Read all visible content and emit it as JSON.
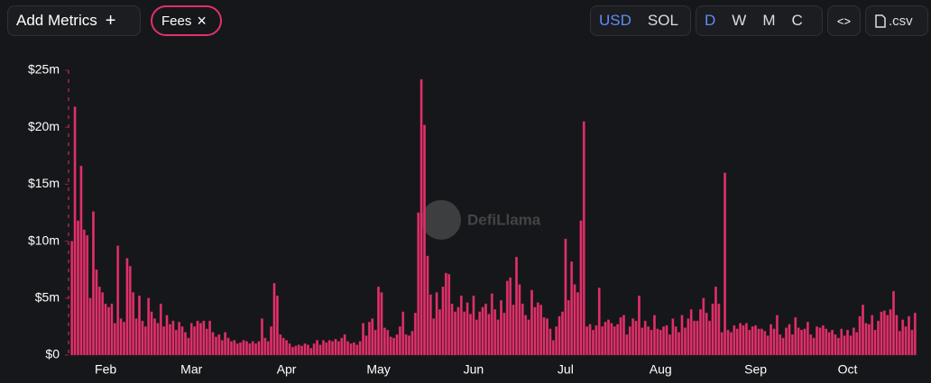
{
  "toolbar": {
    "add_metrics": "Add Metrics",
    "add_icon": "+",
    "metric": "Fees",
    "remove_icon": "×",
    "currencies": [
      "USD",
      "SOL"
    ],
    "periods": [
      "D",
      "W",
      "M",
      "C"
    ],
    "embed": "<>",
    "csv": ".csv"
  },
  "watermark": "DefiLlama",
  "chart_data": {
    "type": "bar",
    "color": "#e0316b",
    "ylim": [
      0,
      25
    ],
    "yticks": [
      {
        "value": 0,
        "label": "$0"
      },
      {
        "value": 5,
        "label": "$5m"
      },
      {
        "value": 10,
        "label": "$10m"
      },
      {
        "value": 15,
        "label": "$15m"
      },
      {
        "value": 20,
        "label": "$20m"
      },
      {
        "value": 25,
        "label": "$25m"
      }
    ],
    "categories": [
      null,
      null,
      null,
      null,
      null,
      null,
      null,
      null,
      null,
      null,
      null,
      "Feb",
      null,
      null,
      null,
      null,
      null,
      null,
      null,
      null,
      null,
      null,
      null,
      null,
      null,
      null,
      null,
      null,
      null,
      null,
      null,
      null,
      null,
      null,
      null,
      null,
      null,
      null,
      null,
      "Mar",
      null,
      null,
      null,
      null,
      null,
      null,
      null,
      null,
      null,
      null,
      null,
      null,
      null,
      null,
      null,
      null,
      null,
      null,
      null,
      null,
      null,
      null,
      null,
      null,
      null,
      null,
      null,
      null,
      null,
      null,
      "Apr",
      null,
      null,
      null,
      null,
      null,
      null,
      null,
      null,
      null,
      null,
      null,
      null,
      null,
      null,
      null,
      null,
      null,
      null,
      null,
      null,
      null,
      null,
      null,
      null,
      null,
      null,
      null,
      null,
      null,
      "May",
      null,
      null,
      null,
      null,
      null,
      null,
      null,
      null,
      null,
      null,
      null,
      null,
      null,
      null,
      null,
      null,
      null,
      null,
      null,
      null,
      null,
      null,
      null,
      null,
      null,
      null,
      null,
      null,
      null,
      null,
      "Jun",
      null,
      null,
      null,
      null,
      null,
      null,
      null,
      null,
      null,
      null,
      null,
      null,
      null,
      null,
      null,
      null,
      null,
      null,
      null,
      null,
      null,
      null,
      null,
      null,
      null,
      null,
      null,
      null,
      null,
      "Jul",
      null,
      null,
      null,
      null,
      null,
      null,
      null,
      null,
      null,
      null,
      null,
      null,
      null,
      null,
      null,
      null,
      null,
      null,
      null,
      null,
      null,
      null,
      null,
      null,
      null,
      null,
      null,
      null,
      null,
      null,
      "Aug",
      null,
      null,
      null,
      null,
      null,
      null,
      null,
      null,
      null,
      null,
      null,
      null,
      null,
      null,
      null,
      null,
      null,
      null,
      null,
      null,
      null,
      null,
      null,
      null,
      null,
      null,
      null,
      null,
      null,
      null,
      "Sep",
      null,
      null,
      null,
      null,
      null,
      null,
      null,
      null,
      null,
      null,
      null,
      null,
      null,
      null,
      null,
      null,
      null,
      null,
      null,
      null,
      null,
      null,
      null,
      null,
      null,
      null,
      null,
      null,
      null,
      "Oct",
      null,
      null,
      null,
      null,
      null,
      null,
      null,
      null,
      null,
      null,
      null,
      null,
      null,
      null,
      null,
      null,
      null,
      null,
      null,
      null,
      null,
      null
    ],
    "values": [
      10,
      21.8,
      11.8,
      16.6,
      11,
      10.5,
      5,
      12.6,
      7.5,
      6,
      5.5,
      4.5,
      4.2,
      4.5,
      2.8,
      9.6,
      3.2,
      2.9,
      8.5,
      7.8,
      5.5,
      3.2,
      5.2,
      3.0,
      2.5,
      5.0,
      3.8,
      3.2,
      2.8,
      4.5,
      2.5,
      3.5,
      2.7,
      3.0,
      2.2,
      2.9,
      2.5,
      2.0,
      1.5,
      2.8,
      2.5,
      3.0,
      2.8,
      3.0,
      2.3,
      3.0,
      2.0,
      1.6,
      1.8,
      1.3,
      2.0,
      1.5,
      1.2,
      1.3,
      1.0,
      1.1,
      1.3,
      1.2,
      1.0,
      1.2,
      1.0,
      1.2,
      3.2,
      1.5,
      1.2,
      2.5,
      6.3,
      5.2,
      1.8,
      1.5,
      1.3,
      1.0,
      0.7,
      0.8,
      0.9,
      0.8,
      1.0,
      0.9,
      0.6,
      1.0,
      1.3,
      0.9,
      1.3,
      1.1,
      1.3,
      1.2,
      1.4,
      1.2,
      1.5,
      1.8,
      1.2,
      1.0,
      1.1,
      0.9,
      1.2,
      2.8,
      1.7,
      2.9,
      3.2,
      2.2,
      6.0,
      5.5,
      2.4,
      2.2,
      1.6,
      1.5,
      1.8,
      2.5,
      3.8,
      1.8,
      1.7,
      2.1,
      3.7,
      12.5,
      24.2,
      20.2,
      8.7,
      5.3,
      3.2,
      5.5,
      4.0,
      6.0,
      7.2,
      7.1,
      4.5,
      3.8,
      4.2,
      5.2,
      3.8,
      4.6,
      3.6,
      5.2,
      3.1,
      3.8,
      4.2,
      4.5,
      3.6,
      5.4,
      4.0,
      3.1,
      4.8,
      3.7,
      6.5,
      6.8,
      4.4,
      8.6,
      6.2,
      4.5,
      3.5,
      3.1,
      5.7,
      4.2,
      4.6,
      4.4,
      3.3,
      3.2,
      2.3,
      1.3,
      2.5,
      3.4,
      3.8,
      10.2,
      4.8,
      8.2,
      6.2,
      5.5,
      11.8,
      20.5,
      2.5,
      2.7,
      2.2,
      2.6,
      5.9,
      2.5,
      2.9,
      3.1,
      2.8,
      2.5,
      2.7,
      3.3,
      3.5,
      1.8,
      2.5,
      3.2,
      3.0,
      5.2,
      2.4,
      3.0,
      2.5,
      2.2,
      3.5,
      2.3,
      2.2,
      2.5,
      2.6,
      1.8,
      3.2,
      2.5,
      2.0,
      3.5,
      2.4,
      3.2,
      4.0,
      3.0,
      3.0,
      4.0,
      5.0,
      3.7,
      3.0,
      4.5,
      6.0,
      4.5,
      2.0,
      16.0,
      2.2,
      2.0,
      2.6,
      2.3,
      2.8,
      2.6,
      2.8,
      2.2,
      2.5,
      2.6,
      2.3,
      2.3,
      2.1,
      1.7,
      2.7,
      2.3,
      3.5,
      1.8,
      1.5,
      2.4,
      2.7,
      1.8,
      3.3,
      2.4,
      2.2,
      2.3,
      2.9,
      1.8,
      1.5,
      2.5,
      2.4,
      2.6,
      2.3,
      2.0,
      2.2,
      1.8,
      1.5,
      2.3,
      1.7,
      2.2,
      1.7,
      2.4,
      2.0,
      3.4,
      4.4,
      2.8,
      2.7,
      3.5,
      2.2,
      3.0,
      3.8,
      3.9,
      3.5,
      4.0,
      5.6,
      3.5,
      2.1,
      3.1,
      2.5,
      3.4,
      2.2,
      3.7
    ]
  }
}
